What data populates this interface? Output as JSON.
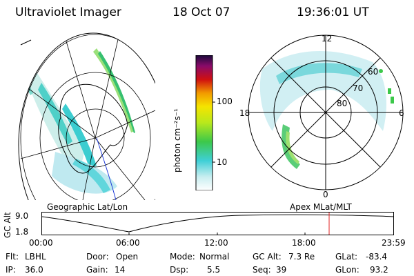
{
  "header": {
    "instrument": "Ultraviolet Imager",
    "date": "18 Oct 07",
    "time": "19:36:01 UT"
  },
  "colorbar": {
    "label": "photon cm⁻²s⁻¹",
    "ticks": [
      "100",
      "10"
    ]
  },
  "left_panel": {
    "caption": "Geographic Lat/Lon"
  },
  "right_panel": {
    "caption": "Apex MLat/MLT",
    "mlt_labels": {
      "top": "12",
      "left": "18",
      "right": "6",
      "bottom": "0"
    },
    "mlat_labels": [
      "60",
      "70",
      "80"
    ]
  },
  "altitude_plot": {
    "axis_label": "GC Alt",
    "y_ticks": [
      "9.0",
      "1.8"
    ],
    "x_ticks": [
      "00:00",
      "06:00",
      "12:00",
      "18:00",
      "23:59"
    ]
  },
  "status": {
    "filter_label": "Flt:",
    "filter_value": "LBHL",
    "door_label": "Door:",
    "door_value": "Open",
    "mode_label": "Mode:",
    "mode_value": "Normal",
    "gcalt_label": "GC Alt:",
    "gcalt_value": "7.3 Re",
    "glat_label": "GLat:",
    "glat_value": "-83.4",
    "ip_label": "IP:",
    "ip_value": "36.0",
    "gain_label": "Gain:",
    "gain_value": "14",
    "dsp_label": "Dsp:",
    "dsp_value": "5.5",
    "seq_label": "Seq:",
    "seq_value": "39",
    "glon_label": "GLon:",
    "glon_value": "93.2"
  }
}
